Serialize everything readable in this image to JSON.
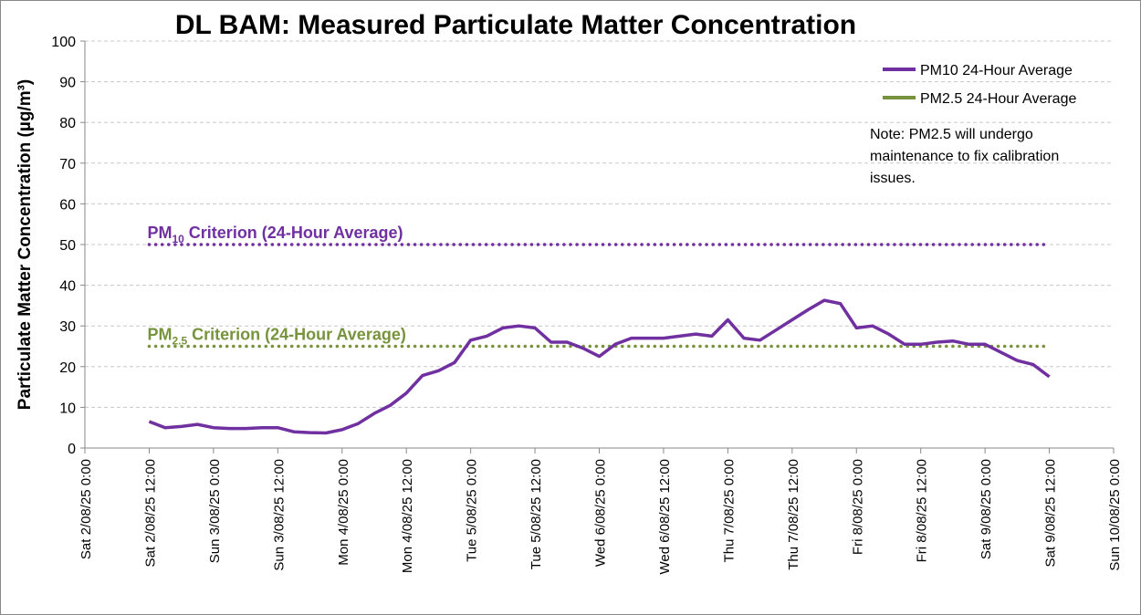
{
  "chart_data": {
    "type": "line",
    "title": "DL BAM: Measured Particulate Matter Concentration",
    "y_label": "Particulate Matter Concentration (µg/m³)",
    "x": [
      "2025-08-02T12:00",
      "2025-08-02T15:00",
      "2025-08-02T18:00",
      "2025-08-02T21:00",
      "2025-08-03T00:00",
      "2025-08-03T03:00",
      "2025-08-03T06:00",
      "2025-08-03T09:00",
      "2025-08-03T12:00",
      "2025-08-03T15:00",
      "2025-08-03T18:00",
      "2025-08-03T21:00",
      "2025-08-04T00:00",
      "2025-08-04T03:00",
      "2025-08-04T06:00",
      "2025-08-04T09:00",
      "2025-08-04T12:00",
      "2025-08-04T15:00",
      "2025-08-04T18:00",
      "2025-08-04T21:00",
      "2025-08-05T00:00",
      "2025-08-05T03:00",
      "2025-08-05T06:00",
      "2025-08-05T09:00",
      "2025-08-05T12:00",
      "2025-08-05T15:00",
      "2025-08-05T18:00",
      "2025-08-05T21:00",
      "2025-08-06T00:00",
      "2025-08-06T03:00",
      "2025-08-06T06:00",
      "2025-08-06T09:00",
      "2025-08-06T12:00",
      "2025-08-06T15:00",
      "2025-08-06T18:00",
      "2025-08-06T21:00",
      "2025-08-07T00:00",
      "2025-08-07T03:00",
      "2025-08-07T06:00",
      "2025-08-07T09:00",
      "2025-08-07T12:00",
      "2025-08-07T15:00",
      "2025-08-07T18:00",
      "2025-08-07T21:00",
      "2025-08-08T00:00",
      "2025-08-08T03:00",
      "2025-08-08T06:00",
      "2025-08-08T09:00",
      "2025-08-08T12:00",
      "2025-08-08T15:00",
      "2025-08-08T18:00",
      "2025-08-08T21:00",
      "2025-08-09T00:00",
      "2025-08-09T03:00",
      "2025-08-09T06:00",
      "2025-08-09T09:00",
      "2025-08-09T12:00"
    ],
    "series": [
      {
        "name": "PM10 24-Hour Average",
        "color": "#7030a0",
        "values": [
          6.5,
          5,
          5.3,
          5.8,
          5,
          4.8,
          4.8,
          5,
          5,
          4,
          3.8,
          3.7,
          4.5,
          6,
          8.5,
          10.5,
          13.5,
          17.8,
          19,
          21,
          26.5,
          27.5,
          29.5,
          30,
          29.5,
          26,
          26,
          24.5,
          22.5,
          25.5,
          27,
          27,
          27,
          27.5,
          28,
          27.5,
          31.5,
          27,
          26.5,
          29,
          31.5,
          34,
          36.3,
          35.5,
          29.5,
          30,
          28,
          25.5,
          25.5,
          26,
          26.3,
          25.5,
          25.5,
          23.5,
          21.5,
          20.5,
          17.5
        ]
      },
      {
        "name": "PM2.5 24-Hour Average",
        "color": "#77933c",
        "values": [
          null,
          null,
          null,
          null,
          null,
          null,
          null,
          null,
          null,
          null,
          null,
          null,
          null,
          null,
          null,
          null,
          null,
          null,
          null,
          null,
          null,
          null,
          null,
          null,
          null,
          null,
          null,
          null,
          null,
          null,
          null,
          null,
          null,
          null,
          null,
          null,
          null,
          null,
          null,
          null,
          null,
          null,
          null,
          null,
          null,
          null,
          null,
          null,
          null,
          null,
          null,
          null,
          null,
          null,
          null,
          null,
          null
        ]
      }
    ],
    "xlim": [
      "2025-08-02T00:00",
      "2025-08-10T00:00"
    ],
    "xticks": [
      {
        "value": "2025-08-02T00:00",
        "label": "Sat 2/08/25 0:00"
      },
      {
        "value": "2025-08-02T12:00",
        "label": "Sat 2/08/25 12:00"
      },
      {
        "value": "2025-08-03T00:00",
        "label": "Sun 3/08/25 0:00"
      },
      {
        "value": "2025-08-03T12:00",
        "label": "Sun 3/08/25 12:00"
      },
      {
        "value": "2025-08-04T00:00",
        "label": "Mon 4/08/25 0:00"
      },
      {
        "value": "2025-08-04T12:00",
        "label": "Mon 4/08/25 12:00"
      },
      {
        "value": "2025-08-05T00:00",
        "label": "Tue 5/08/25 0:00"
      },
      {
        "value": "2025-08-05T12:00",
        "label": "Tue 5/08/25 12:00"
      },
      {
        "value": "2025-08-06T00:00",
        "label": "Wed 6/08/25 0:00"
      },
      {
        "value": "2025-08-06T12:00",
        "label": "Wed 6/08/25 12:00"
      },
      {
        "value": "2025-08-07T00:00",
        "label": "Thu 7/08/25 0:00"
      },
      {
        "value": "2025-08-07T12:00",
        "label": "Thu 7/08/25 12:00"
      },
      {
        "value": "2025-08-08T00:00",
        "label": "Fri 8/08/25 0:00"
      },
      {
        "value": "2025-08-08T12:00",
        "label": "Fri 8/08/25 12:00"
      },
      {
        "value": "2025-08-09T00:00",
        "label": "Sat 9/08/25 0:00"
      },
      {
        "value": "2025-08-09T12:00",
        "label": "Sat 9/08/25 12:00"
      },
      {
        "value": "2025-08-10T00:00",
        "label": "Sun 10/08/25 0:00"
      }
    ],
    "ylim": [
      0,
      100
    ],
    "yticks": [
      0,
      10,
      20,
      30,
      40,
      50,
      60,
      70,
      80,
      90,
      100
    ],
    "grid": true,
    "legend": "upper right",
    "criteria": [
      {
        "text": "PM",
        "sub": "10",
        "rest": " Criterion (24-Hour Average)",
        "value": 50,
        "color": "#7030a0",
        "x_start": "2025-08-02T12:00",
        "x_end": "2025-08-09T12:00"
      },
      {
        "text": "PM",
        "sub": "2.5",
        "rest": " Criterion (24-Hour Average)",
        "value": 25,
        "color": "#77933c",
        "x_start": "2025-08-02T12:00",
        "x_end": "2025-08-09T12:00"
      }
    ],
    "note": [
      "Note: PM2.5 will undergo",
      "maintenance to fix calibration",
      "issues."
    ]
  }
}
